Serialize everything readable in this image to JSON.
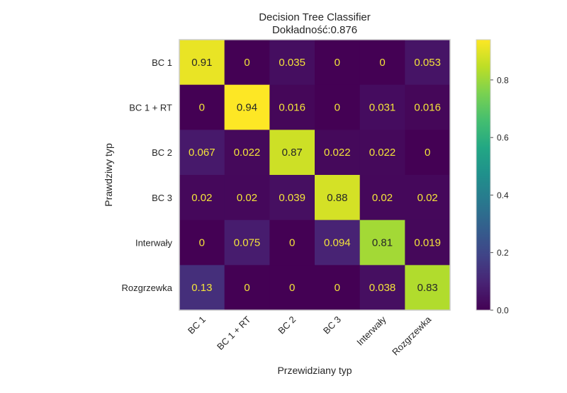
{
  "chart_data": {
    "type": "heatmap",
    "title": "Decision Tree Classifier",
    "subtitle": "Dokładność:0.876",
    "xlabel": "Przewidziany typ",
    "ylabel": "Prawdziwy typ",
    "row_labels": [
      "BC 1",
      "BC 1 + RT",
      "BC 2",
      "BC 3",
      "Interwały",
      "Rozgrzewka"
    ],
    "col_labels": [
      "BC 1",
      "BC 1 + RT",
      "BC 2",
      "BC 3",
      "Interwały",
      "Rozgrzewka"
    ],
    "values": [
      [
        0.91,
        0,
        0.035,
        0,
        0,
        0.053
      ],
      [
        0,
        0.94,
        0.016,
        0,
        0.031,
        0.016
      ],
      [
        0.067,
        0.022,
        0.87,
        0.022,
        0.022,
        0
      ],
      [
        0.02,
        0.02,
        0.039,
        0.88,
        0.02,
        0.02
      ],
      [
        0,
        0.075,
        0,
        0.094,
        0.81,
        0.019
      ],
      [
        0.13,
        0,
        0,
        0,
        0.038,
        0.83
      ]
    ],
    "value_labels": [
      [
        "0.91",
        "0",
        "0.035",
        "0",
        "0",
        "0.053"
      ],
      [
        "0",
        "0.94",
        "0.016",
        "0",
        "0.031",
        "0.016"
      ],
      [
        "0.067",
        "0.022",
        "0.87",
        "0.022",
        "0.022",
        "0"
      ],
      [
        "0.02",
        "0.02",
        "0.039",
        "0.88",
        "0.02",
        "0.02"
      ],
      [
        "0",
        "0.075",
        "0",
        "0.094",
        "0.81",
        "0.019"
      ],
      [
        "0.13",
        "0",
        "0",
        "0",
        "0.038",
        "0.83"
      ]
    ],
    "colormap": "viridis",
    "vmin": 0,
    "vmax": 0.94,
    "colorbar_ticks": [
      0.0,
      0.2,
      0.4,
      0.6,
      0.8
    ],
    "colorbar_tick_labels": [
      "0.0",
      "0.2",
      "0.4",
      "0.6",
      "0.8"
    ],
    "grid": false
  }
}
